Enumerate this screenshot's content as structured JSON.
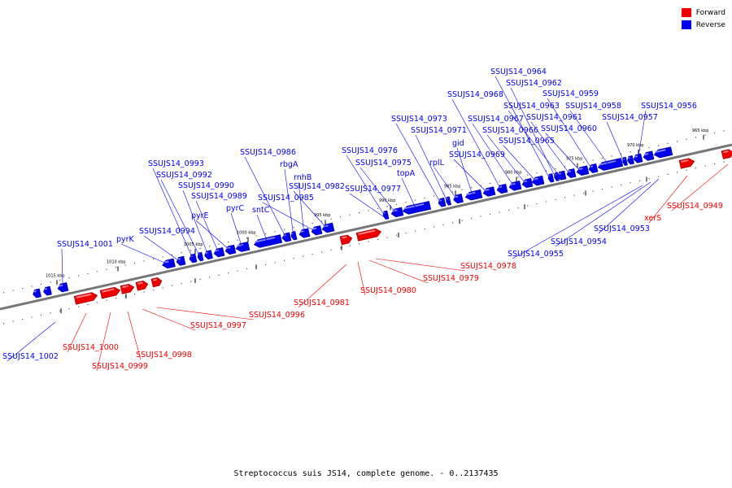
{
  "legend": [
    {
      "label": "Forward",
      "color": "#ee0000"
    },
    {
      "label": "Reverse",
      "color": "#0000ee"
    }
  ],
  "caption": "Streptococcus suis JS14, complete genome. - 0..2137435",
  "axis_ticks": [
    "1015 kbp",
    "1010 kbp",
    "1005 kbp",
    "1000 kbp",
    "995 kbp",
    "990 kbp",
    "985 kbp",
    "980 kbp",
    "975 kbp",
    "970 kbp",
    "965 kbp"
  ],
  "reverse_labels": [
    "SSUJS14_1001",
    "pyrK",
    "SSUJS14_0994",
    "SSUJS14_0993",
    "SSUJS14_0992",
    "SSUJS14_0990",
    "SSUJS14_0989",
    "pyrE",
    "pyrC",
    "sntC",
    "SSUJS14_0986",
    "rbgA",
    "rnhB",
    "SSUJS14_0985",
    "SSUJS14_0982",
    "SSUJS14_0976",
    "SSUJS14_0975",
    "SSUJS14_0977",
    "topA",
    "SSUJS14_0973",
    "SSUJS14_0971",
    "rplL",
    "gid",
    "SSUJS14_0969",
    "SSUJS14_0968",
    "SSUJS14_0967",
    "SSUJS14_0966",
    "SSUJS14_0965",
    "SSUJS14_0964",
    "SSUJS14_0962",
    "SSUJS14_0963",
    "SSUJS14_0961",
    "SSUJS14_0960",
    "SSUJS14_0959",
    "SSUJS14_0958",
    "SSUJS14_0957",
    "SSUJS14_0956",
    "SSUJS14_0953",
    "SSUJS14_0954",
    "SSUJS14_0955",
    "SSUJS14_1002"
  ],
  "forward_labels": [
    "SSUJS14_0996",
    "SSUJS14_0997",
    "SSUJS14_1000",
    "SSUJS14_0998",
    "SSUJS14_0999",
    "SSUJS14_0981",
    "SSUJS14_0980",
    "SSUJS14_0979",
    "SSUJS14_0978",
    "xerS",
    "SSUJS14_0949"
  ]
}
